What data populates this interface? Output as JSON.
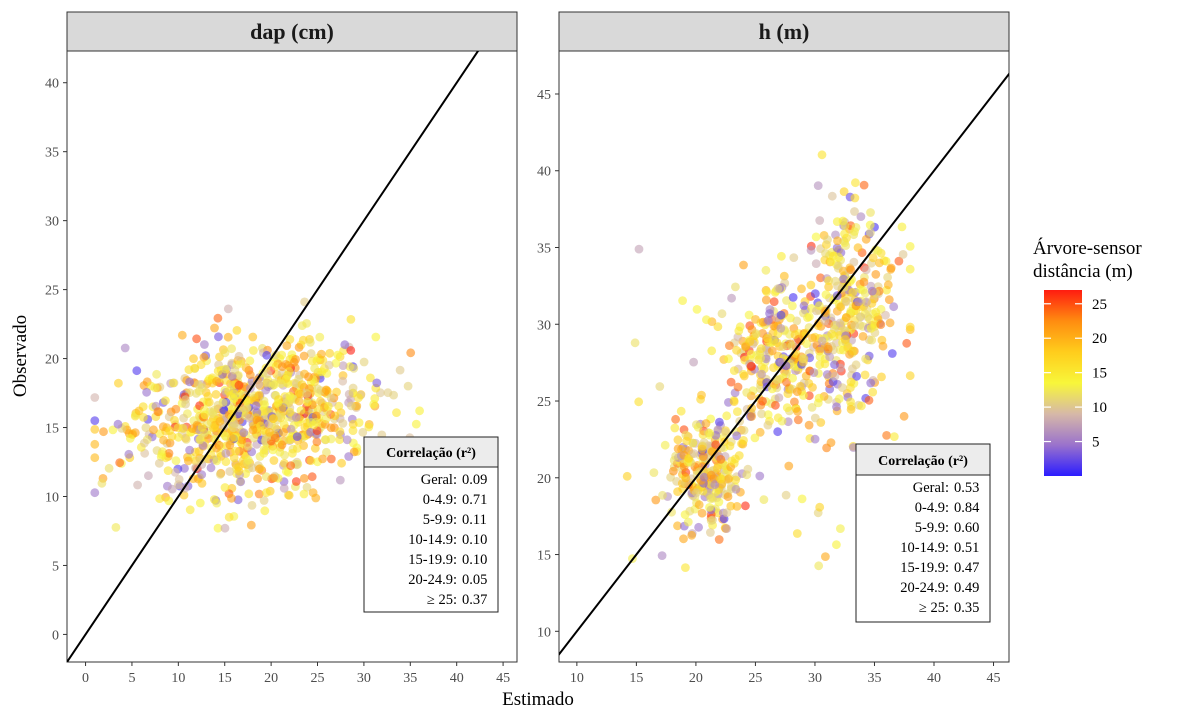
{
  "chart_data": {
    "type": "scatter",
    "xlabel": "Estimado",
    "ylabel": "Observado",
    "identity_line": true,
    "panels": [
      {
        "title": "dap (cm)",
        "xlim": [
          -2,
          46.5
        ],
        "ylim": [
          -2,
          42.3
        ],
        "xticks": [
          0,
          5,
          10,
          15,
          20,
          25,
          30,
          35,
          40,
          45
        ],
        "yticks": [
          0,
          5,
          10,
          15,
          20,
          25,
          30,
          35,
          40
        ],
        "cluster": {
          "x_range": [
            1,
            36
          ],
          "y_range": [
            7.7,
            25.2
          ],
          "n_points": 900
        },
        "correlation_box": {
          "title": "Correlação (r²)",
          "rows": [
            {
              "label": "Geral:",
              "value": "0.09"
            },
            {
              "label": "0-4.9:",
              "value": "0.71"
            },
            {
              "label": "5-9.9:",
              "value": "0.11"
            },
            {
              "label": "10-14.9:",
              "value": "0.10"
            },
            {
              "label": "15-19.9:",
              "value": "0.10"
            },
            {
              "label": "20-24.9:",
              "value": "0.05"
            },
            {
              "label": "≥ 25:",
              "value": "0.37"
            }
          ]
        }
      },
      {
        "title": "h (m)",
        "xlim": [
          8.5,
          46.3
        ],
        "ylim": [
          8,
          47.8
        ],
        "xticks": [
          10,
          15,
          20,
          25,
          30,
          35,
          40,
          45
        ],
        "yticks": [
          10,
          15,
          20,
          25,
          30,
          35,
          40,
          45
        ],
        "cluster": {
          "x_range": [
            14,
            38
          ],
          "y_range": [
            13,
            41.6
          ],
          "n_points": 900
        },
        "correlation_box": {
          "title": "Correlação (r²)",
          "rows": [
            {
              "label": "Geral:",
              "value": "0.53"
            },
            {
              "label": "0-4.9:",
              "value": "0.84"
            },
            {
              "label": "5-9.9:",
              "value": "0.60"
            },
            {
              "label": "10-14.9:",
              "value": "0.51"
            },
            {
              "label": "15-19.9:",
              "value": "0.47"
            },
            {
              "label": "20-24.9:",
              "value": "0.49"
            },
            {
              "label": "≥ 25:",
              "value": "0.35"
            }
          ]
        }
      }
    ],
    "color_legend": {
      "title_line1": "Árvore-sensor",
      "title_line2": "distância (m)",
      "min": 0,
      "max": 27,
      "ticks": [
        5,
        10,
        15,
        20,
        25
      ],
      "colors": [
        "#2b1cff",
        "#9a72cc",
        "#d6b8a8",
        "#f8f63a",
        "#ffcd1c",
        "#ff8c10",
        "#ff1c10"
      ]
    },
    "point_opacity": 0.6
  }
}
